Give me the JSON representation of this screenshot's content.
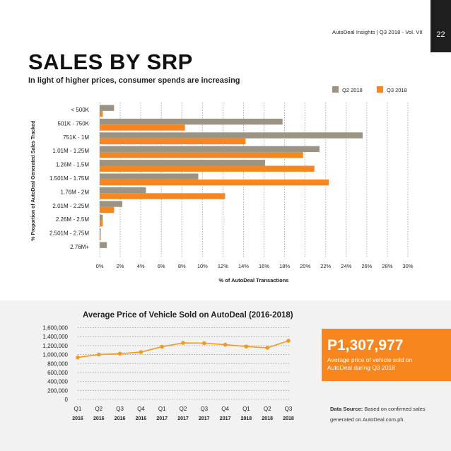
{
  "header": {
    "meta": "AutoDeal Insights  |  Q3 2018 - Vol. VII",
    "page_number": "22"
  },
  "title": "SALES BY SRP",
  "subtitle": "In light of higher prices, consumer spends are increasing",
  "colors": {
    "q2": "#9b9384",
    "q3": "#f7861f",
    "accent": "#f7861f",
    "band": "#f2f2f2",
    "line": "#f29a1e"
  },
  "chart_data": [
    {
      "type": "bar",
      "orientation": "horizontal",
      "categories": [
        "< 500K",
        "501K - 750K",
        "751K - 1M",
        "1.01M - 1.25M",
        "1.26M - 1.5M",
        "1.501M - 1.75M",
        "1.76M - 2M",
        "2.01M - 2.25M",
        "2.26M - 2.5M",
        "2.501M - 2.75M",
        "2.76M+"
      ],
      "series": [
        {
          "name": "Q2 2018",
          "values": [
            1.4,
            17.8,
            25.6,
            21.4,
            16.1,
            9.6,
            4.5,
            2.2,
            0.3,
            0.1,
            0.7
          ]
        },
        {
          "name": "Q3 2018",
          "values": [
            0.3,
            8.3,
            14.2,
            19.8,
            20.9,
            22.3,
            12.2,
            1.4,
            0.3,
            0.1,
            0
          ]
        }
      ],
      "xlabel": "% of AutoDeal Transactions",
      "ylabel": "% Proportion of AutoDeal Generated Sales Tracked",
      "xlim": [
        0,
        30
      ],
      "xticks": [
        "0%",
        "2%",
        "4%",
        "6%",
        "8%",
        "10%",
        "12%",
        "14%",
        "16%",
        "18%",
        "20%",
        "22%",
        "24%",
        "26%",
        "28%",
        "30%"
      ],
      "legend": "top-right",
      "grid": "vertical dotted"
    },
    {
      "type": "line",
      "title": "Average Price of Vehicle Sold on AutoDeal (2016-2018)",
      "x_quarters": [
        "Q1",
        "Q2",
        "Q3",
        "Q4",
        "Q1",
        "Q2",
        "Q3",
        "Q4",
        "Q1",
        "Q2",
        "Q3"
      ],
      "x_years": [
        "2016",
        "2016",
        "2016",
        "2016",
        "2017",
        "2017",
        "2017",
        "2017",
        "2018",
        "2018",
        "2018"
      ],
      "values": [
        935000,
        1000000,
        1020000,
        1055000,
        1175000,
        1260000,
        1255000,
        1220000,
        1180000,
        1150000,
        1307977
      ],
      "ylim": [
        0,
        1600000
      ],
      "yticks": [
        "0",
        "200,000",
        "400,000",
        "600,000",
        "800,000",
        "1,000,000",
        "1,200,000",
        "1,400,000",
        "1,600,000"
      ],
      "grid": "horizontal dotted"
    }
  ],
  "highlight": {
    "value": "P1,307,977",
    "caption": "Average price of vehicle sold on AutoDeal during Q3 2018"
  },
  "source": {
    "label": "Data Source:",
    "text": " Based on confirmed sales generated on AutoDeal.com.ph."
  }
}
